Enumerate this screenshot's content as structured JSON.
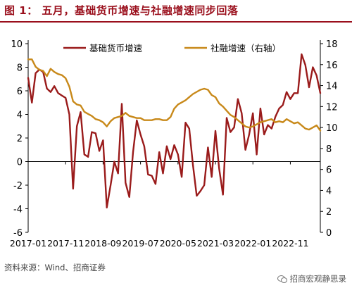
{
  "header": {
    "title": "图 1： 五月，基础货币增速与社融增速同步回落"
  },
  "footer": {
    "source": "资料来源：Wind、招商证券",
    "watermark": "招商宏观静思录",
    "watermark_icon": "wechat-icon"
  },
  "chart_data": {
    "type": "line",
    "title": "",
    "xlabel": "",
    "ylabel": "",
    "x_tick_labels": [
      "2017-01",
      "2017-11",
      "2018-09",
      "2019-07",
      "2020-05",
      "2021-03",
      "2022-01",
      "2022-11"
    ],
    "y_left_ticks": [
      -6,
      -4,
      -2,
      0,
      2,
      4,
      6,
      8,
      10
    ],
    "y_right_ticks": [
      0,
      2,
      4,
      6,
      8,
      10,
      12,
      14,
      16,
      18
    ],
    "y_left_range": [
      -6,
      10
    ],
    "y_right_range": [
      0,
      18
    ],
    "legend_position": "top",
    "grid": false,
    "series": [
      {
        "name": "基础货币增速",
        "axis": "left",
        "color": "#9a1b1b",
        "values": [
          7.1,
          5.0,
          7.5,
          7.8,
          7.6,
          6.2,
          5.9,
          6.4,
          5.8,
          5.6,
          5.4,
          4.0,
          -2.3,
          3.0,
          4.2,
          0.6,
          0.4,
          2.5,
          2.4,
          0.9,
          1.8,
          -3.9,
          -2.0,
          0.0,
          -1.0,
          4.9,
          -1.8,
          -3.0,
          0.8,
          3.5,
          2.3,
          1.3,
          -1.1,
          -1.2,
          -1.9,
          0.8,
          -1.0,
          1.3,
          0.2,
          1.4,
          0.6,
          -1.3,
          3.3,
          2.8,
          -0.3,
          -2.9,
          -2.5,
          -2.0,
          1.2,
          -1.3,
          2.6,
          -0.6,
          -2.8,
          3.7,
          2.5,
          2.9,
          5.3,
          4.1,
          1.0,
          2.3,
          4.1,
          0.6,
          4.5,
          2.3,
          3.1,
          2.8,
          3.8,
          4.5,
          4.8,
          5.9,
          5.3,
          5.8,
          5.8,
          9.1,
          8.2,
          6.3,
          8.0,
          7.3,
          5.8
        ]
      },
      {
        "name": "社融增速（右轴）",
        "axis": "right",
        "color": "#c8891a",
        "values": [
          16.5,
          16.5,
          15.8,
          15.5,
          15.4,
          14.9,
          15.6,
          15.3,
          15.1,
          15.0,
          14.7,
          13.9,
          12.5,
          12.2,
          12.1,
          11.5,
          11.3,
          11.1,
          10.8,
          10.7,
          10.5,
          10.1,
          10.6,
          10.9,
          11.0,
          11.1,
          11.4,
          11.1,
          11.0,
          10.9,
          10.9,
          10.7,
          10.7,
          10.7,
          10.8,
          10.8,
          10.7,
          10.7,
          11.0,
          11.8,
          12.2,
          12.4,
          12.6,
          12.9,
          13.2,
          13.4,
          13.6,
          13.7,
          13.6,
          13.1,
          12.9,
          12.3,
          12.0,
          11.6,
          11.2,
          11.0,
          10.7,
          10.4,
          10.1,
          10.0,
          10.1,
          10.3,
          10.5,
          10.6,
          10.7,
          10.8,
          10.5,
          10.6,
          10.5,
          10.8,
          10.6,
          10.4,
          10.5,
          10.2,
          9.9,
          9.8,
          10.0,
          10.2,
          9.7
        ]
      }
    ]
  }
}
